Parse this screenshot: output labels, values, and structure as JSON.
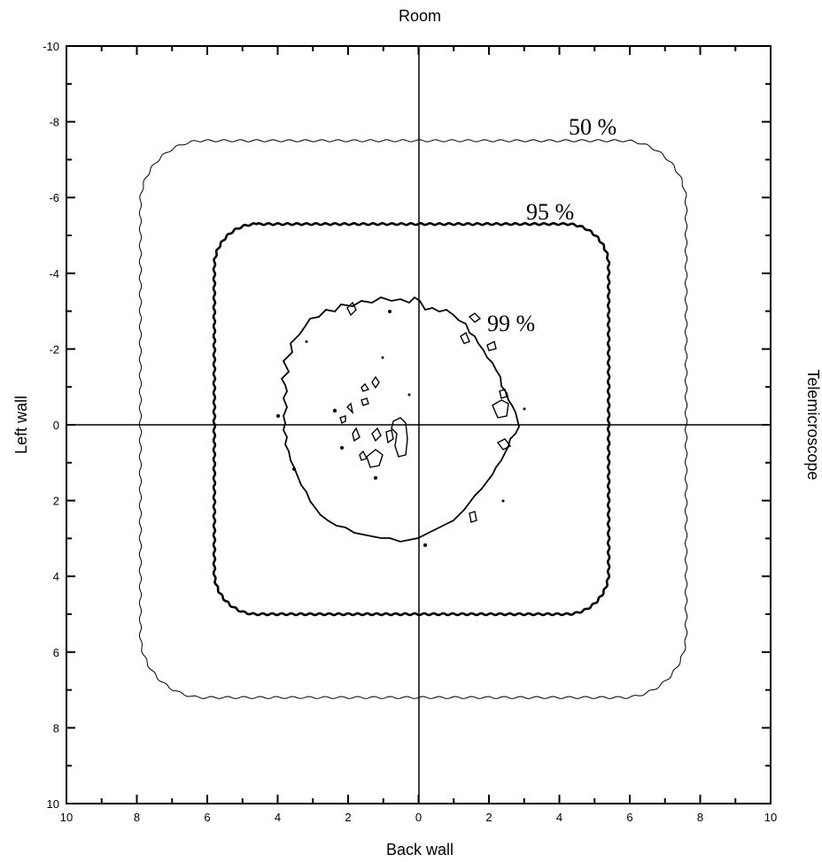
{
  "chart_data": {
    "type": "contour",
    "title": "",
    "top_label": "Room",
    "right_label": "Telemicroscope",
    "xlabel": "Back wall",
    "ylabel": "Left wall",
    "x_ticks": [
      "10",
      "8",
      "6",
      "4",
      "2",
      "0",
      "2",
      "4",
      "6",
      "8",
      "10"
    ],
    "y_ticks": [
      "-10",
      "-8",
      "-6",
      "-4",
      "-2",
      "0",
      "2",
      "4",
      "6",
      "8",
      "10"
    ],
    "xlim": [
      -10,
      10
    ],
    "ylim": [
      -10,
      10
    ],
    "grid": false,
    "crosshair_at": [
      0,
      0
    ],
    "contours": [
      {
        "label": "50 %",
        "x_min": -7.9,
        "x_max": 7.6,
        "y_min": -7.5,
        "y_max": 7.2,
        "corner_radius": 1.8,
        "stroke": "thin"
      },
      {
        "label": "95 %",
        "x_min": -5.8,
        "x_max": 5.4,
        "y_min": -5.3,
        "y_max": 5.0,
        "corner_radius": 1.2,
        "stroke": "thick"
      },
      {
        "label": "99 %",
        "shape": "irregular",
        "x_range": [
          -3.9,
          2.8
        ],
        "y_range": [
          -3.2,
          3.1
        ],
        "stroke": "medium"
      }
    ]
  }
}
